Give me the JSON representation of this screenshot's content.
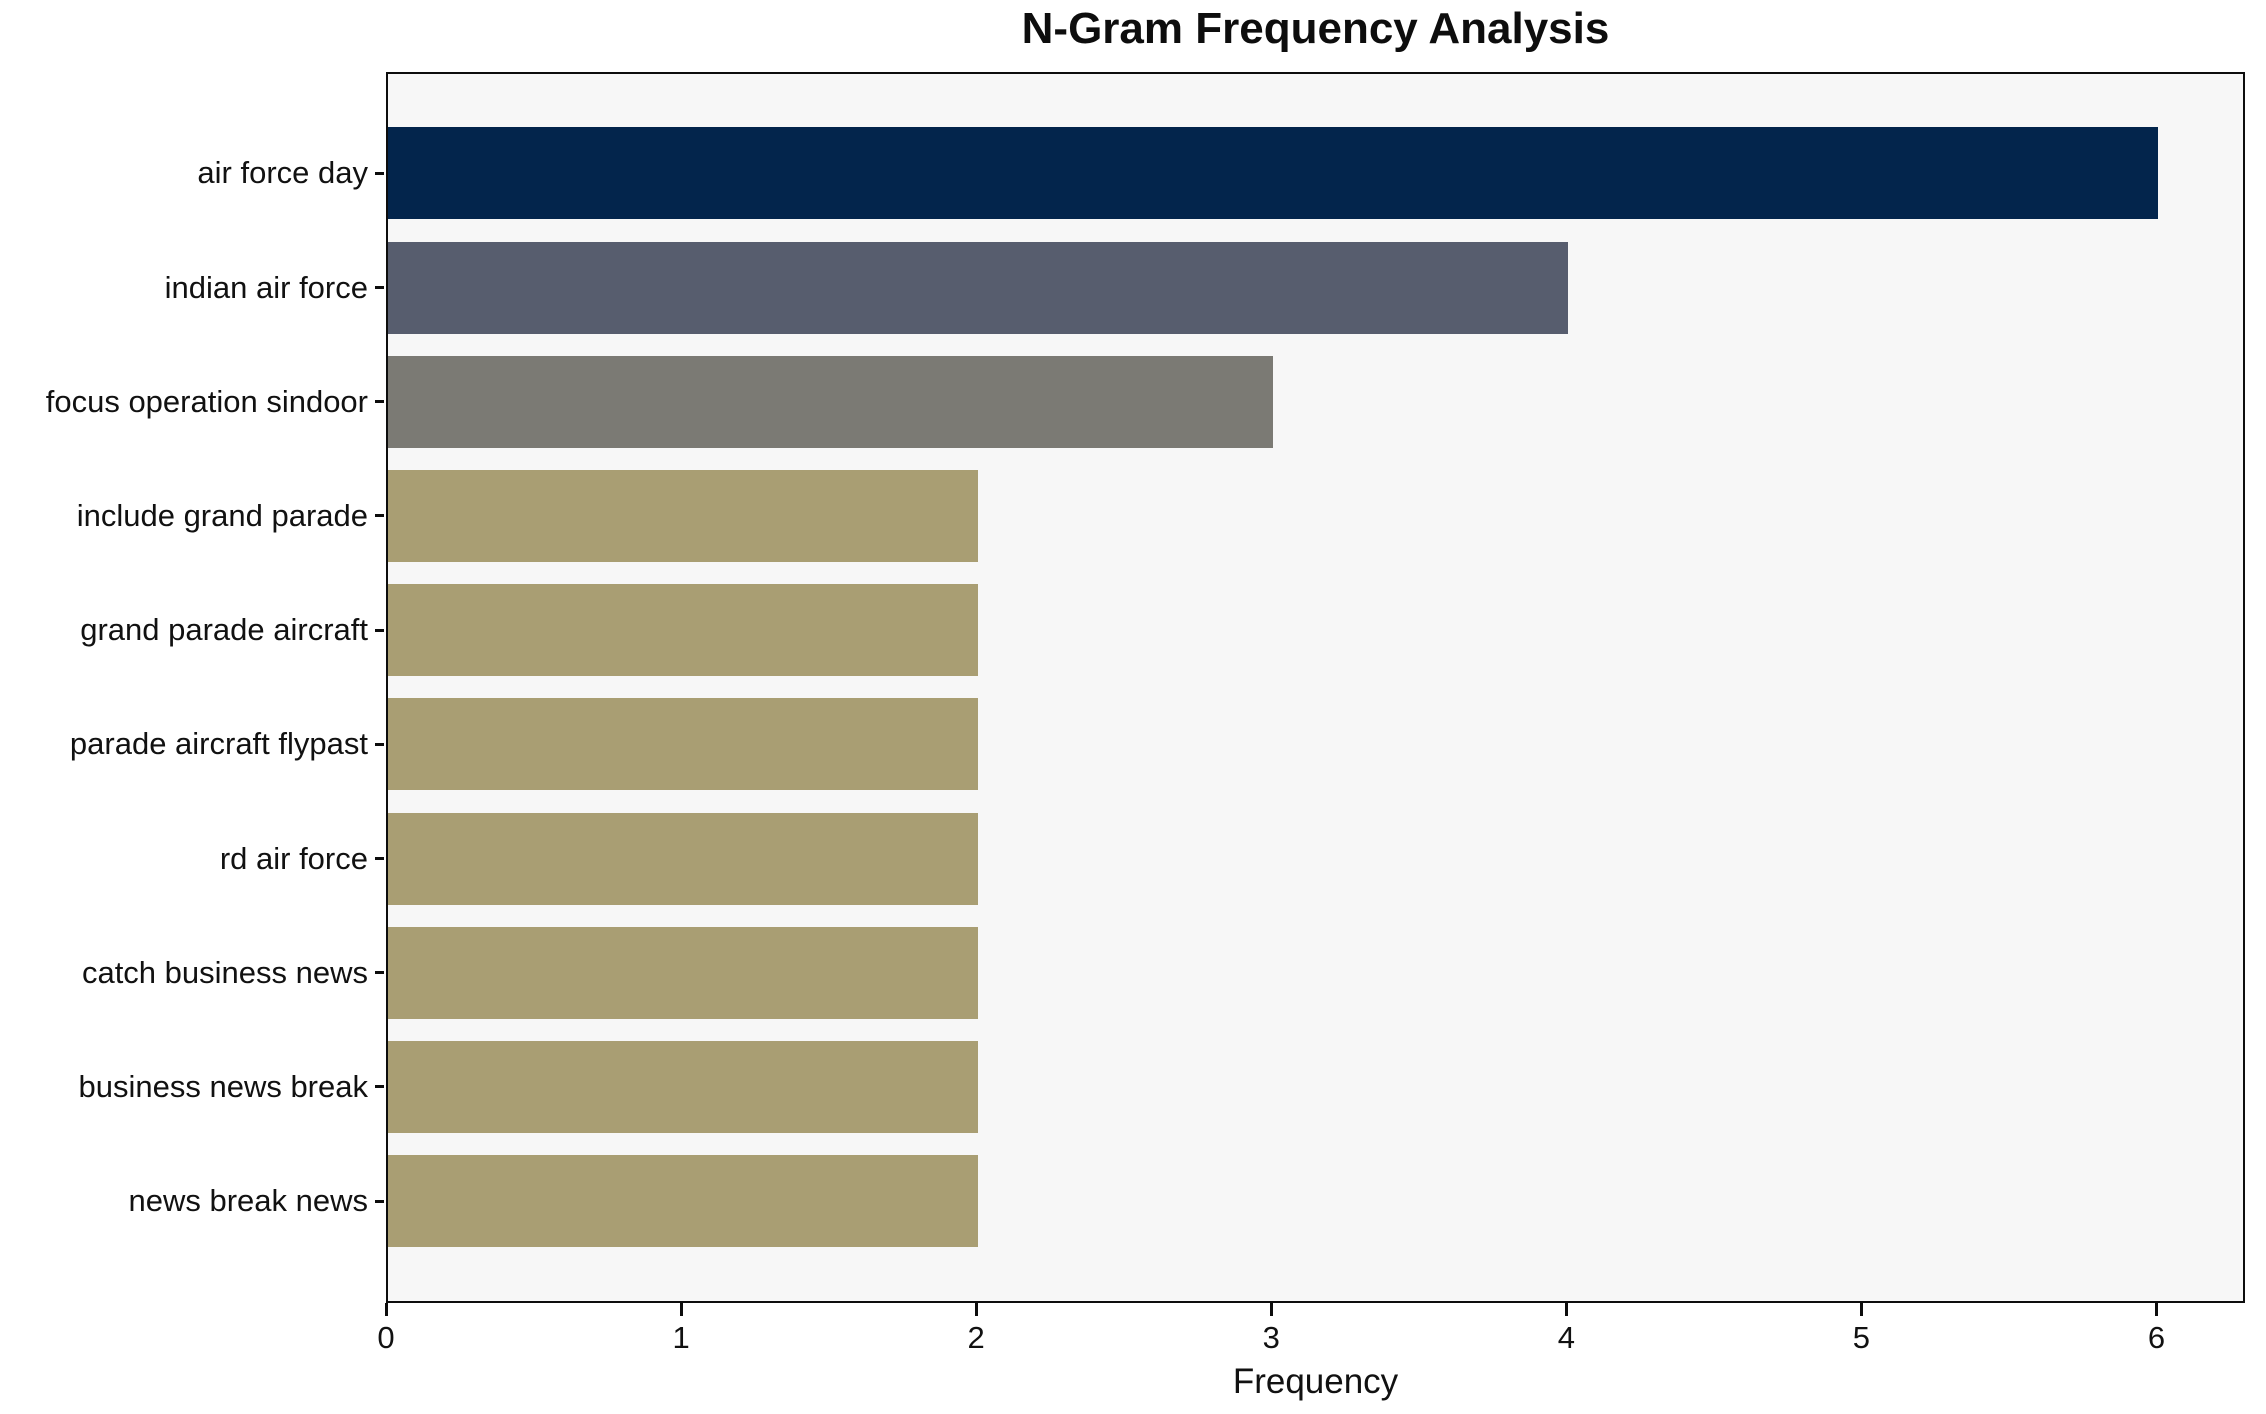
{
  "chart_data": {
    "type": "bar",
    "orientation": "horizontal",
    "title": "N-Gram Frequency Analysis",
    "xlabel": "Frequency",
    "ylabel": "",
    "categories": [
      "air force day",
      "indian air force",
      "focus operation sindoor",
      "include grand parade",
      "grand parade aircraft",
      "parade aircraft flypast",
      "rd air force",
      "catch business news",
      "business news break",
      "news break news"
    ],
    "values": [
      6,
      4,
      3,
      2,
      2,
      2,
      2,
      2,
      2,
      2
    ],
    "bar_colors": [
      "#03254c",
      "#575d6e",
      "#7b7a74",
      "#a99e73",
      "#a99e73",
      "#a99e73",
      "#a99e73",
      "#a99e73",
      "#a99e73",
      "#a99e73"
    ],
    "x_ticks": [
      0,
      1,
      2,
      3,
      4,
      5,
      6
    ],
    "xlim": [
      0,
      6.3
    ],
    "grid": false,
    "legend": null,
    "plot_background": "#f7f7f7",
    "page_background": "#ffffff",
    "spine_color": "#0d0d0d"
  }
}
